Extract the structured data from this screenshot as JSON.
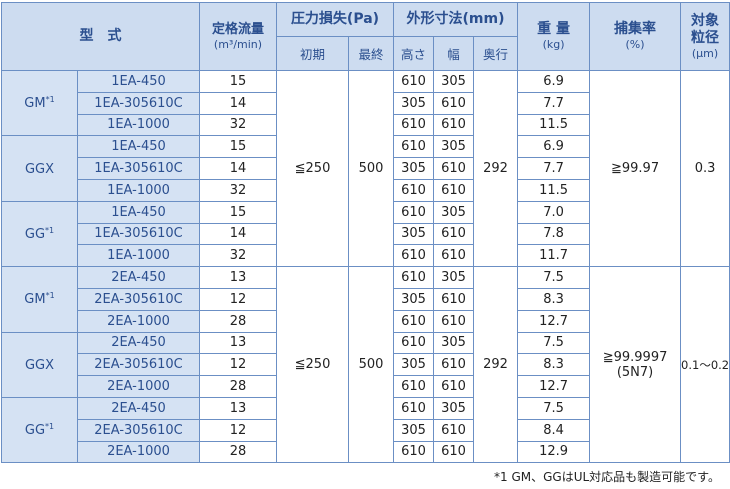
{
  "header": {
    "model": "型　式",
    "flow_title": "定格流量",
    "flow_unit": "(m³/min)",
    "pressure_title": "圧力損失(Pa)",
    "pressure_initial": "初期",
    "pressure_final": "最終",
    "dims_title": "外形寸法(mm)",
    "dims_height": "高さ",
    "dims_width": "幅",
    "dims_depth": "奥行",
    "weight_title": "重 量",
    "weight_unit": "(kg)",
    "eff_title": "捕集率",
    "eff_unit": "(%)",
    "particle_title_1": "対象",
    "particle_title_2": "粒径",
    "particle_unit": "(μm)"
  },
  "sections": [
    {
      "initial_pressure": "≦250",
      "final_pressure": "500",
      "depth": "292",
      "efficiency_line1": "≧99.97",
      "efficiency_line2": "",
      "particle_size": "0.3",
      "groups": [
        {
          "name": "GM",
          "mark": "*1",
          "rows": [
            {
              "model": "1EA-450",
              "flow": "15",
              "h": "610",
              "w": "305",
              "weight": "6.9"
            },
            {
              "model": "1EA-305610C",
              "flow": "14",
              "h": "305",
              "w": "610",
              "weight": "7.7"
            },
            {
              "model": "1EA-1000",
              "flow": "32",
              "h": "610",
              "w": "610",
              "weight": "11.5"
            }
          ]
        },
        {
          "name": "GGX",
          "mark": "",
          "rows": [
            {
              "model": "1EA-450",
              "flow": "15",
              "h": "610",
              "w": "305",
              "weight": "6.9"
            },
            {
              "model": "1EA-305610C",
              "flow": "14",
              "h": "305",
              "w": "610",
              "weight": "7.7"
            },
            {
              "model": "1EA-1000",
              "flow": "32",
              "h": "610",
              "w": "610",
              "weight": "11.5"
            }
          ]
        },
        {
          "name": "GG",
          "mark": "*1",
          "rows": [
            {
              "model": "1EA-450",
              "flow": "15",
              "h": "610",
              "w": "305",
              "weight": "7.0"
            },
            {
              "model": "1EA-305610C",
              "flow": "14",
              "h": "305",
              "w": "610",
              "weight": "7.8"
            },
            {
              "model": "1EA-1000",
              "flow": "32",
              "h": "610",
              "w": "610",
              "weight": "11.7"
            }
          ]
        }
      ]
    },
    {
      "initial_pressure": "≦250",
      "final_pressure": "500",
      "depth": "292",
      "efficiency_line1": "≧99.9997",
      "efficiency_line2": "(5N7)",
      "particle_size": "0.1～0.2",
      "groups": [
        {
          "name": "GM",
          "mark": "*1",
          "rows": [
            {
              "model": "2EA-450",
              "flow": "13",
              "h": "610",
              "w": "305",
              "weight": "7.5"
            },
            {
              "model": "2EA-305610C",
              "flow": "12",
              "h": "305",
              "w": "610",
              "weight": "8.3"
            },
            {
              "model": "2EA-1000",
              "flow": "28",
              "h": "610",
              "w": "610",
              "weight": "12.7"
            }
          ]
        },
        {
          "name": "GGX",
          "mark": "",
          "rows": [
            {
              "model": "2EA-450",
              "flow": "13",
              "h": "610",
              "w": "305",
              "weight": "7.5"
            },
            {
              "model": "2EA-305610C",
              "flow": "12",
              "h": "305",
              "w": "610",
              "weight": "8.3"
            },
            {
              "model": "2EA-1000",
              "flow": "28",
              "h": "610",
              "w": "610",
              "weight": "12.7"
            }
          ]
        },
        {
          "name": "GG",
          "mark": "*1",
          "rows": [
            {
              "model": "2EA-450",
              "flow": "13",
              "h": "610",
              "w": "305",
              "weight": "7.5"
            },
            {
              "model": "2EA-305610C",
              "flow": "12",
              "h": "305",
              "w": "610",
              "weight": "8.4"
            },
            {
              "model": "2EA-1000",
              "flow": "28",
              "h": "610",
              "w": "610",
              "weight": "12.9"
            }
          ]
        }
      ]
    }
  ],
  "footnote": "*1 GM、GGはUL対応品も製造可能です。"
}
